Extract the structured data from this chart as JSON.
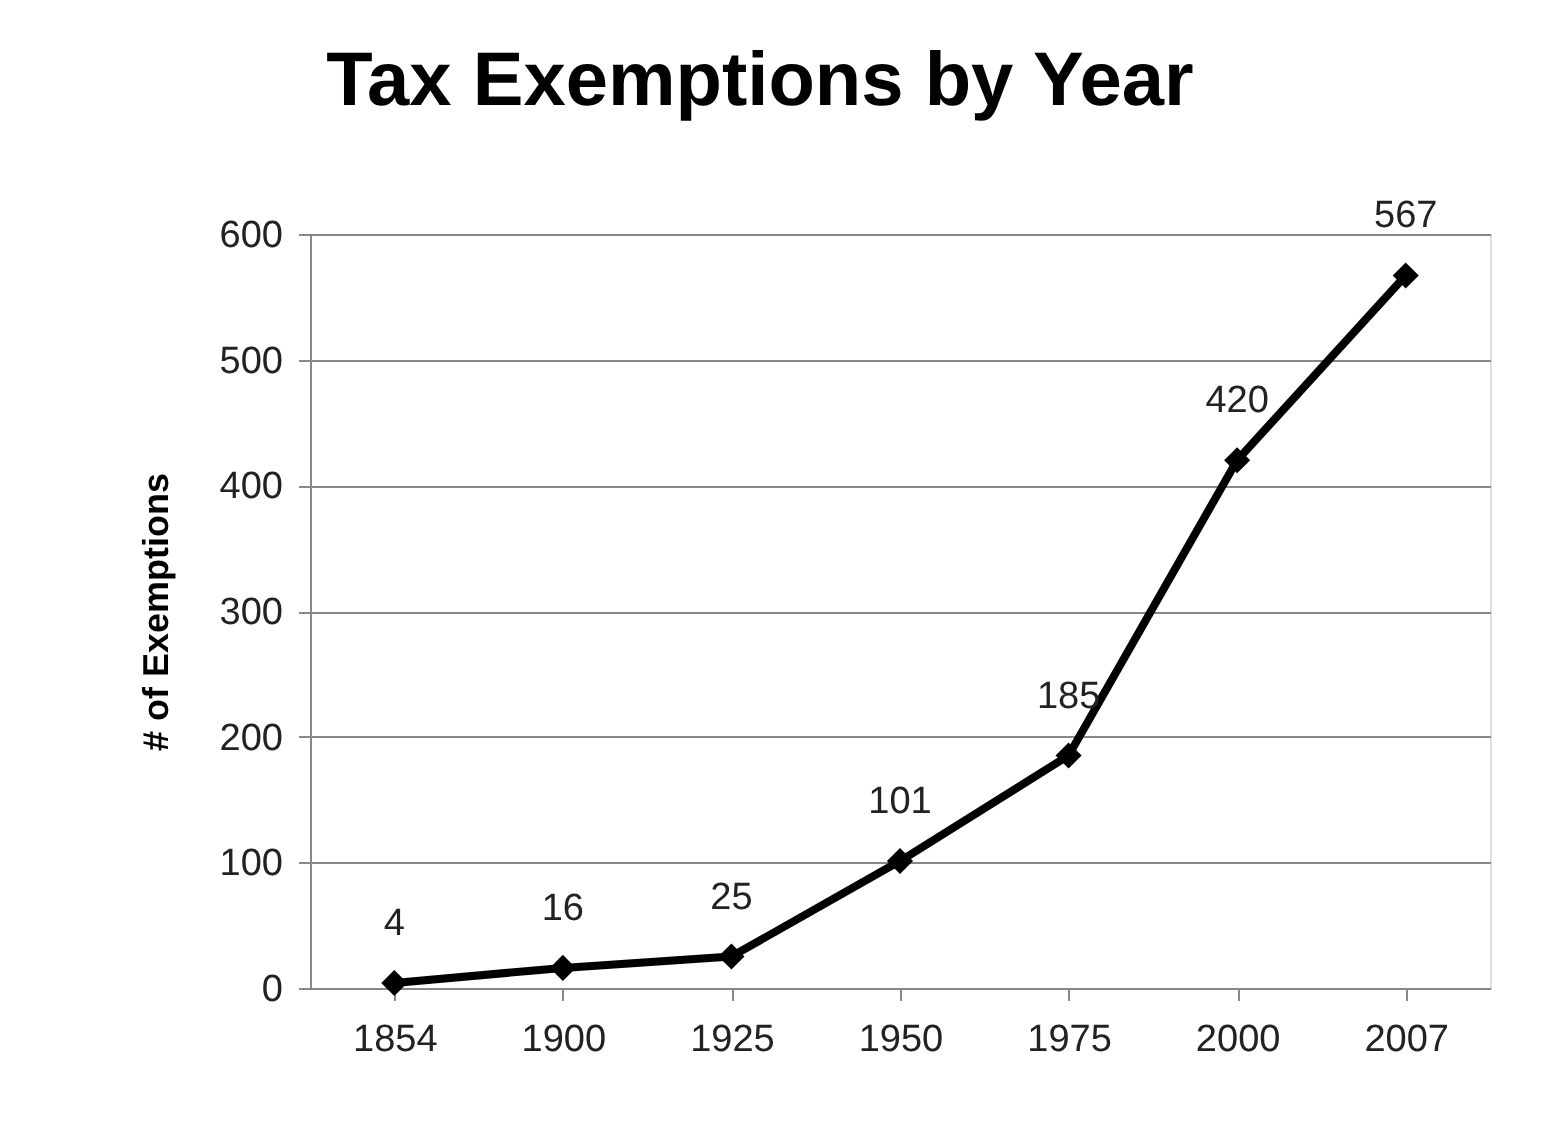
{
  "chart_data": {
    "type": "line",
    "title": "Tax Exemptions by Year",
    "ylabel": "# of Exemptions",
    "categories": [
      "1854",
      "1900",
      "1925",
      "1950",
      "1975",
      "2000",
      "2007"
    ],
    "series": [
      {
        "color": "#000000",
        "values": [
          4,
          16,
          25,
          101,
          185,
          420,
          567
        ]
      }
    ],
    "ylim": [
      0,
      600
    ],
    "yticks": [
      0,
      100,
      200,
      300,
      400,
      500,
      600
    ],
    "grid": "y",
    "data_labels": true,
    "marker": "diamond",
    "line_style": "solid"
  }
}
